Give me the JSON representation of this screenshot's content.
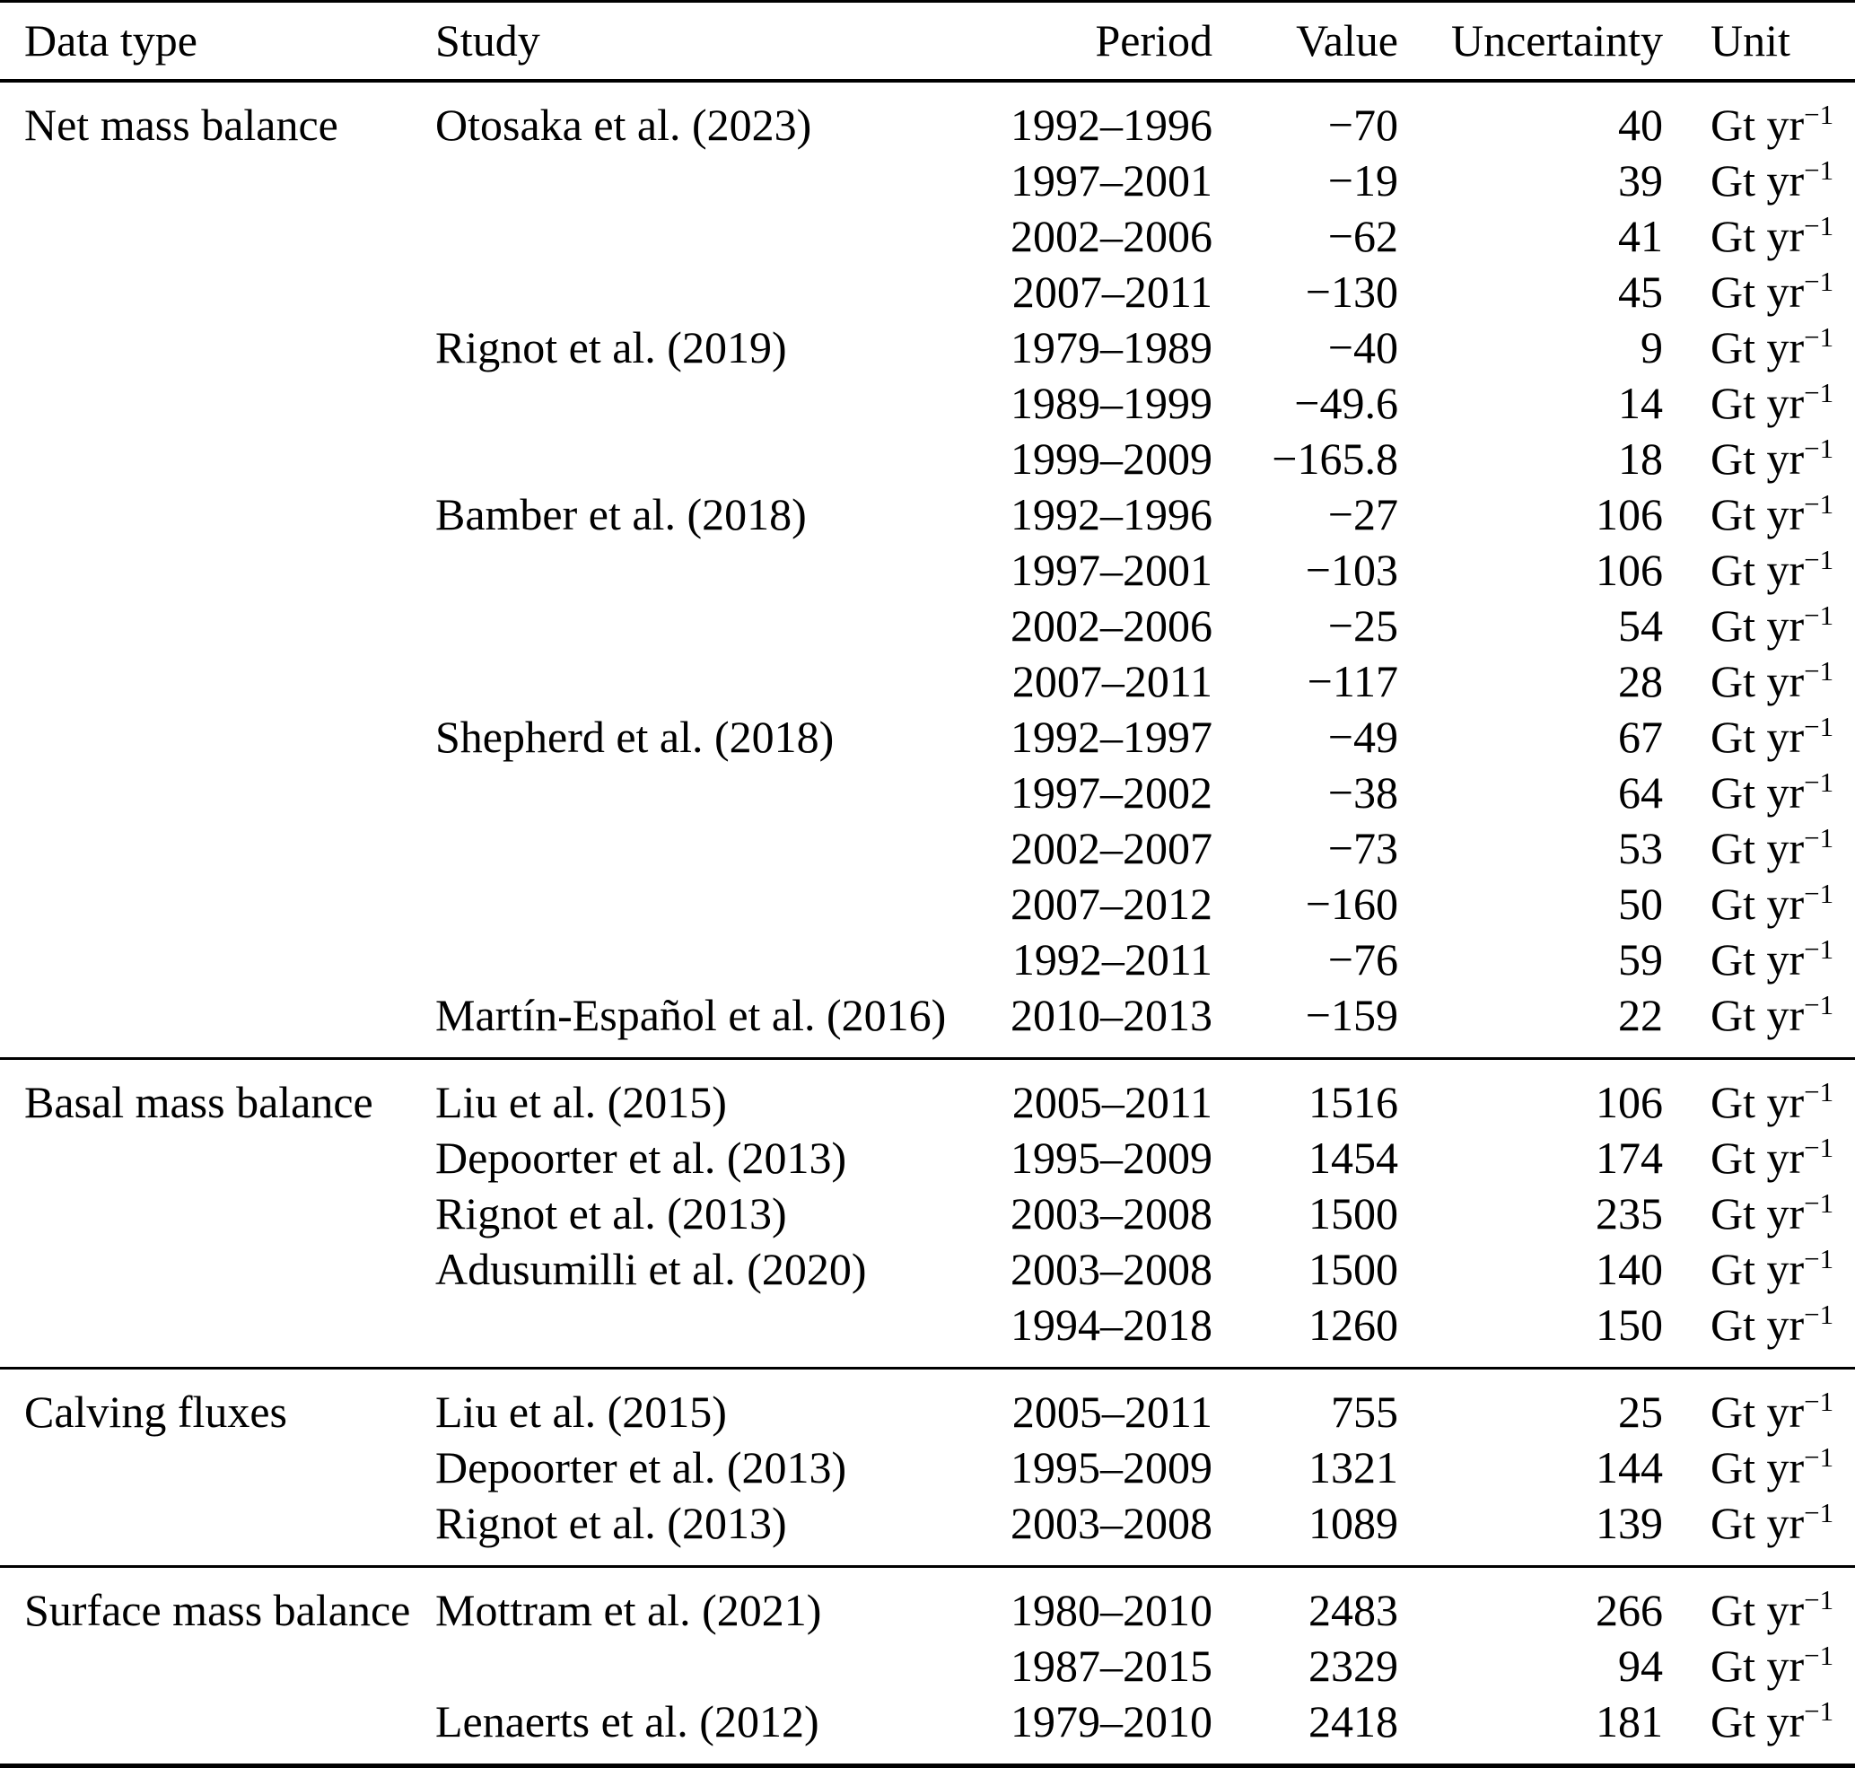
{
  "table": {
    "ink_color": "#000000",
    "background_color": "#ffffff",
    "unit": {
      "base": "Gt yr",
      "superscript": "−1"
    },
    "headers": {
      "data_type": "Data type",
      "study": "Study",
      "period": "Period",
      "value": "Value",
      "uncertainty": "Uncertainty",
      "unit": "Unit"
    },
    "sections": [
      {
        "data_type": "Net mass balance",
        "rows": [
          {
            "study": "Otosaka et al. (2023)",
            "period": "1992–1996",
            "value": "−70",
            "uncertainty": "40"
          },
          {
            "study": "",
            "period": "1997–2001",
            "value": "−19",
            "uncertainty": "39"
          },
          {
            "study": "",
            "period": "2002–2006",
            "value": "−62",
            "uncertainty": "41"
          },
          {
            "study": "",
            "period": "2007–2011",
            "value": "−130",
            "uncertainty": "45"
          },
          {
            "study": "Rignot et al. (2019)",
            "period": "1979–1989",
            "value": "−40",
            "uncertainty": "9"
          },
          {
            "study": "",
            "period": "1989–1999",
            "value": "−49.6",
            "uncertainty": "14"
          },
          {
            "study": "",
            "period": "1999–2009",
            "value": "−165.8",
            "uncertainty": "18"
          },
          {
            "study": "Bamber et al. (2018)",
            "period": "1992–1996",
            "value": "−27",
            "uncertainty": "106"
          },
          {
            "study": "",
            "period": "1997–2001",
            "value": "−103",
            "uncertainty": "106"
          },
          {
            "study": "",
            "period": "2002–2006",
            "value": "−25",
            "uncertainty": "54"
          },
          {
            "study": "",
            "period": "2007–2011",
            "value": "−117",
            "uncertainty": "28"
          },
          {
            "study": "Shepherd et al. (2018)",
            "period": "1992–1997",
            "value": "−49",
            "uncertainty": "67"
          },
          {
            "study": "",
            "period": "1997–2002",
            "value": "−38",
            "uncertainty": "64"
          },
          {
            "study": "",
            "period": "2002–2007",
            "value": "−73",
            "uncertainty": "53"
          },
          {
            "study": "",
            "period": "2007–2012",
            "value": "−160",
            "uncertainty": "50"
          },
          {
            "study": "",
            "period": "1992–2011",
            "value": "−76",
            "uncertainty": "59"
          },
          {
            "study": "Martín-Español et al. (2016)",
            "period": "2010–2013",
            "value": "−159",
            "uncertainty": "22"
          }
        ]
      },
      {
        "data_type": "Basal mass balance",
        "rows": [
          {
            "study": "Liu et al. (2015)",
            "period": "2005–2011",
            "value": "1516",
            "uncertainty": "106"
          },
          {
            "study": "Depoorter et al. (2013)",
            "period": "1995–2009",
            "value": "1454",
            "uncertainty": "174"
          },
          {
            "study": "Rignot et al. (2013)",
            "period": "2003–2008",
            "value": "1500",
            "uncertainty": "235"
          },
          {
            "study": "Adusumilli et al. (2020)",
            "period": "2003–2008",
            "value": "1500",
            "uncertainty": "140"
          },
          {
            "study": "",
            "period": "1994–2018",
            "value": "1260",
            "uncertainty": "150"
          }
        ]
      },
      {
        "data_type": "Calving fluxes",
        "rows": [
          {
            "study": "Liu et al. (2015)",
            "period": "2005–2011",
            "value": "755",
            "uncertainty": "25"
          },
          {
            "study": "Depoorter et al. (2013)",
            "period": "1995–2009",
            "value": "1321",
            "uncertainty": "144"
          },
          {
            "study": "Rignot et al. (2013)",
            "period": "2003–2008",
            "value": "1089",
            "uncertainty": "139"
          }
        ]
      },
      {
        "data_type": "Surface mass balance",
        "rows": [
          {
            "study": "Mottram et al. (2021)",
            "period": "1980–2010",
            "value": "2483",
            "uncertainty": "266"
          },
          {
            "study": "",
            "period": "1987–2015",
            "value": "2329",
            "uncertainty": "94"
          },
          {
            "study": "Lenaerts et al. (2012)",
            "period": "1979–2010",
            "value": "2418",
            "uncertainty": "181"
          }
        ]
      }
    ]
  }
}
